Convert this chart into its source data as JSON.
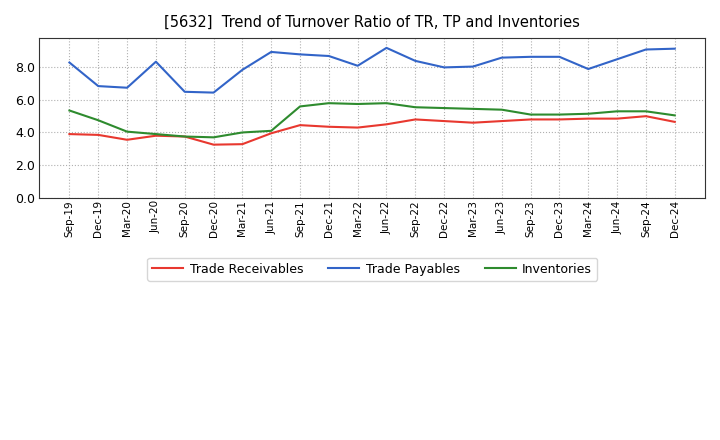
{
  "title": "[5632]  Trend of Turnover Ratio of TR, TP and Inventories",
  "x_labels": [
    "Sep-19",
    "Dec-19",
    "Mar-20",
    "Jun-20",
    "Sep-20",
    "Dec-20",
    "Mar-21",
    "Jun-21",
    "Sep-21",
    "Dec-21",
    "Mar-22",
    "Jun-22",
    "Sep-22",
    "Dec-22",
    "Mar-23",
    "Jun-23",
    "Sep-23",
    "Dec-23",
    "Mar-24",
    "Jun-24",
    "Sep-24",
    "Dec-24"
  ],
  "trade_receivables": [
    3.9,
    3.85,
    3.55,
    3.8,
    3.75,
    3.25,
    3.28,
    3.95,
    4.45,
    4.35,
    4.3,
    4.5,
    4.8,
    4.7,
    4.6,
    4.7,
    4.8,
    4.8,
    4.85,
    4.85,
    5.0,
    4.65
  ],
  "trade_payables": [
    8.3,
    6.85,
    6.75,
    8.35,
    6.5,
    6.45,
    7.85,
    8.95,
    8.8,
    8.7,
    8.1,
    9.2,
    8.4,
    8.0,
    8.05,
    8.6,
    8.65,
    8.65,
    7.9,
    8.5,
    9.1,
    9.15
  ],
  "inventories": [
    5.35,
    4.75,
    4.05,
    3.9,
    3.75,
    3.7,
    4.0,
    4.1,
    5.6,
    5.8,
    5.75,
    5.8,
    5.55,
    5.5,
    5.45,
    5.4,
    5.1,
    5.1,
    5.15,
    5.3,
    5.3,
    5.05
  ],
  "ylim": [
    0,
    9.8
  ],
  "yticks": [
    0.0,
    2.0,
    4.0,
    6.0,
    8.0
  ],
  "colors": {
    "trade_receivables": "#e8382f",
    "trade_payables": "#3264c8",
    "inventories": "#2e8b2e"
  },
  "legend": [
    "Trade Receivables",
    "Trade Payables",
    "Inventories"
  ],
  "background_color": "#ffffff",
  "plot_bg": "#ffffff"
}
